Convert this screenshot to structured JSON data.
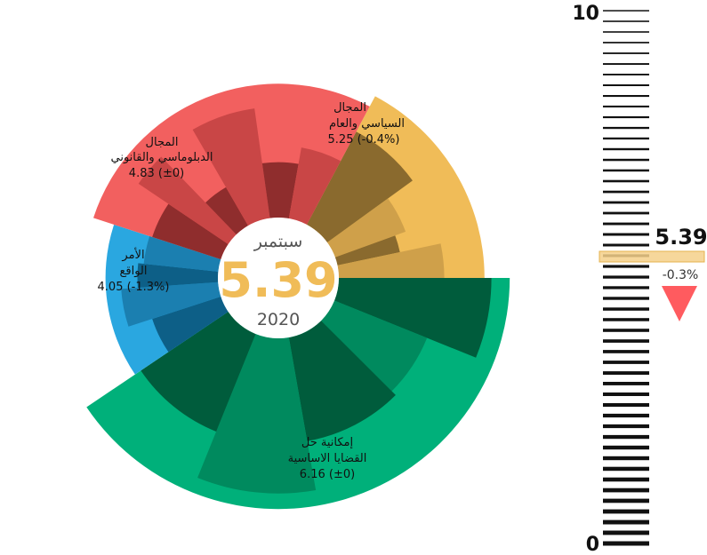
{
  "chart_data": {
    "type": "sunburst",
    "center": {
      "month": "سبتمبر",
      "value": "5.39",
      "year": "2020"
    },
    "scale": {
      "min": 0,
      "max": 10,
      "min_label": "0",
      "max_label": "10"
    },
    "categories": [
      {
        "name_line1": "المجال",
        "name_line2": "السياسي والعام",
        "value": 5.25,
        "change": "-0.4%",
        "value_label": "5.25 (-0.4%)",
        "color": "#f0bc58",
        "dark": "#8a6a2e",
        "mid": "#cfa04a"
      },
      {
        "name_line1": "إمكانية حل",
        "name_line2": "القضايا الاساسية",
        "value": 6.16,
        "change": "±0",
        "value_label": "6.16 (±0)",
        "color": "#00b07a",
        "dark": "#005c3c",
        "mid": "#008a5e"
      },
      {
        "name_line1": "الأمر",
        "name_line2": "الواقع",
        "value": 4.05,
        "change": "-1.3%",
        "value_label": "4.05 (-1.3%)",
        "color": "#2aa7e0",
        "dark": "#0d5f87",
        "mid": "#1b7fb0"
      },
      {
        "name_line1": "المجال",
        "name_line2": "الدبلوماسي والقانوني",
        "value": 4.83,
        "change": "±0",
        "value_label": "4.83 (±0)",
        "color": "#f2605f",
        "dark": "#8f2d2d",
        "mid": "#c94646"
      }
    ],
    "indicator": {
      "value": "5.39",
      "change": "-0.3%",
      "direction": "down",
      "color": "#ff5b5f",
      "band_color": "#f5d08a"
    }
  }
}
